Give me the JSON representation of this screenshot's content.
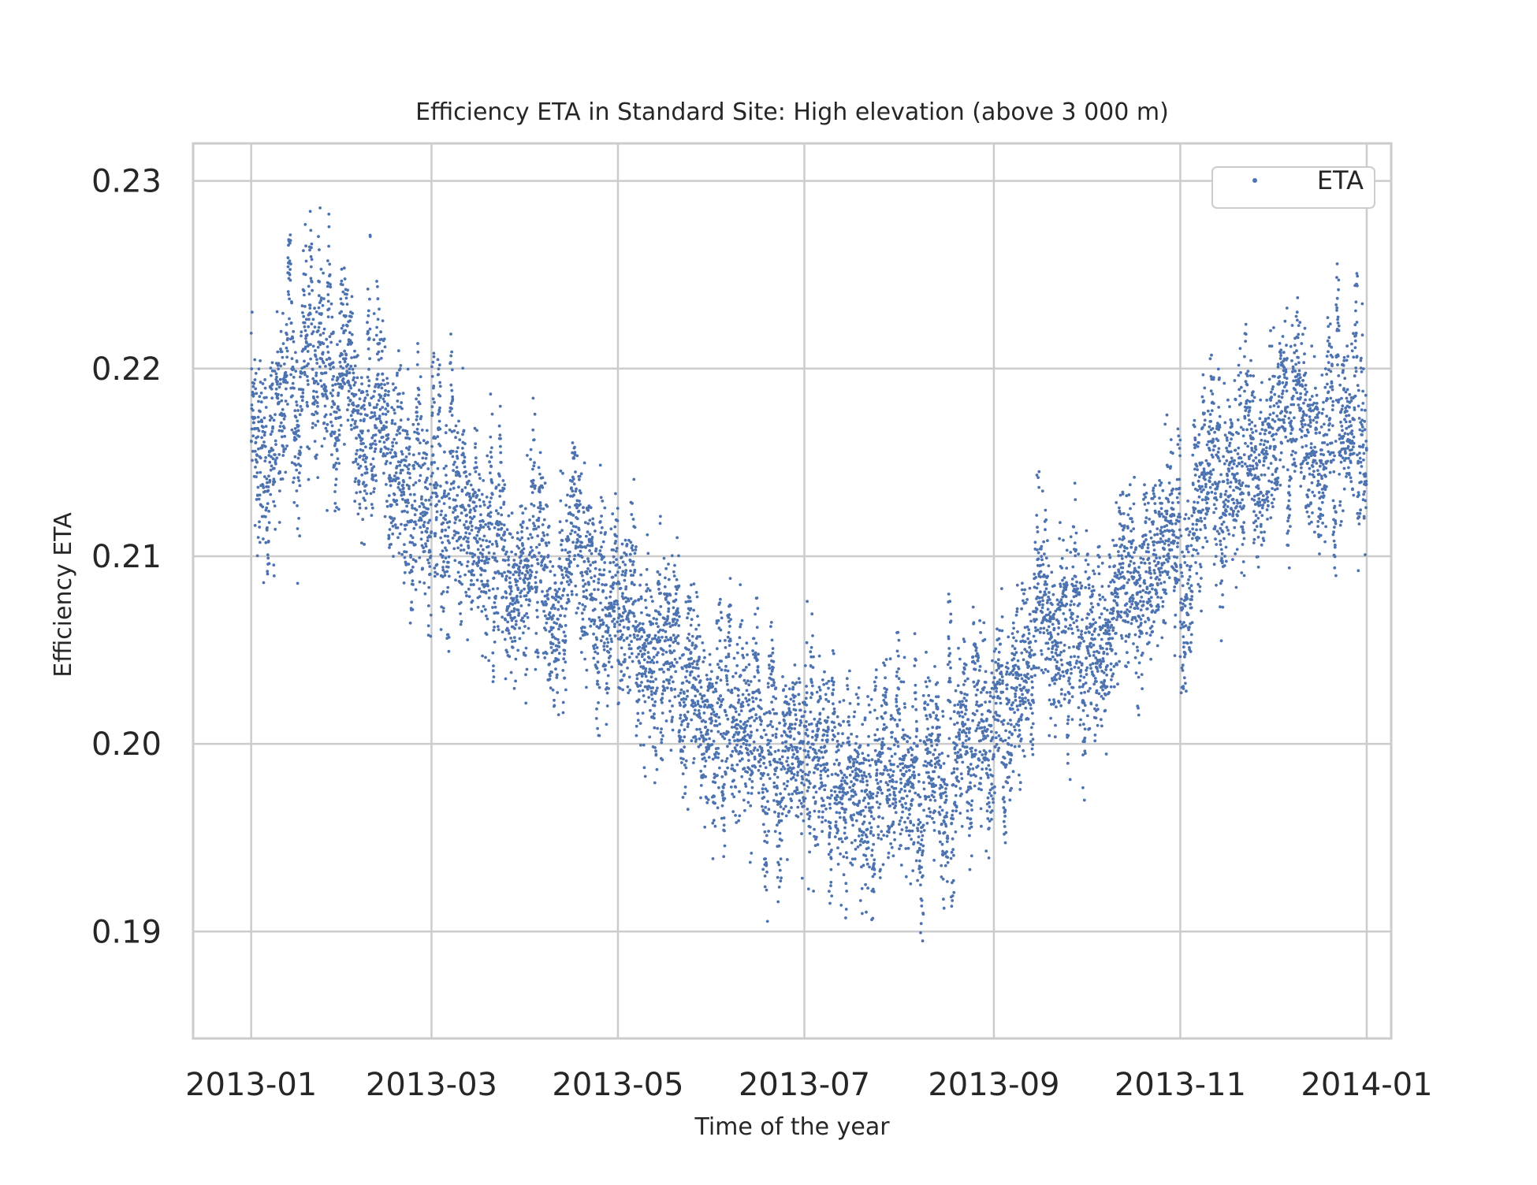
{
  "chart_data": {
    "type": "scatter",
    "title": "Efficiency ETA in Standard Site: High elevation (above 3 000 m)",
    "xlabel": "Time of the year",
    "ylabel": "Efficiency ETA",
    "x_range": [
      "2012-12-13",
      "2014-01-09"
    ],
    "ylim": [
      0.1843,
      0.232
    ],
    "x_ticks": [
      "2013-01",
      "2013-03",
      "2013-05",
      "2013-07",
      "2013-09",
      "2013-11",
      "2014-01"
    ],
    "y_ticks": [
      "0.19",
      "0.20",
      "0.21",
      "0.22",
      "0.23"
    ],
    "grid": true,
    "legend": {
      "position": "top-right",
      "entries": [
        "ETA"
      ]
    },
    "marker": "dot",
    "series_color": "#4c72b0",
    "series": [
      {
        "name": "ETA",
        "note_density": "hourly points, approx. one per hour over 2013",
        "trend": [
          {
            "x": "2013-01-01",
            "y": 0.2165
          },
          {
            "x": "2013-01-10",
            "y": 0.219
          },
          {
            "x": "2013-01-20",
            "y": 0.2205
          },
          {
            "x": "2013-02-01",
            "y": 0.2195
          },
          {
            "x": "2013-02-10",
            "y": 0.218
          },
          {
            "x": "2013-02-20",
            "y": 0.215
          },
          {
            "x": "2013-03-01",
            "y": 0.2125
          },
          {
            "x": "2013-03-15",
            "y": 0.211
          },
          {
            "x": "2013-04-01",
            "y": 0.2095
          },
          {
            "x": "2013-04-15",
            "y": 0.2085
          },
          {
            "x": "2013-05-01",
            "y": 0.206
          },
          {
            "x": "2013-05-15",
            "y": 0.205
          },
          {
            "x": "2013-06-01",
            "y": 0.203
          },
          {
            "x": "2013-06-15",
            "y": 0.2
          },
          {
            "x": "2013-07-01",
            "y": 0.199
          },
          {
            "x": "2013-07-15",
            "y": 0.1975
          },
          {
            "x": "2013-08-01",
            "y": 0.1985
          },
          {
            "x": "2013-08-15",
            "y": 0.199
          },
          {
            "x": "2013-09-01",
            "y": 0.201
          },
          {
            "x": "2013-09-15",
            "y": 0.2045
          },
          {
            "x": "2013-10-01",
            "y": 0.206
          },
          {
            "x": "2013-10-15",
            "y": 0.2085
          },
          {
            "x": "2013-11-01",
            "y": 0.2115
          },
          {
            "x": "2013-11-15",
            "y": 0.214
          },
          {
            "x": "2013-12-01",
            "y": 0.2155
          },
          {
            "x": "2013-12-15",
            "y": 0.217
          },
          {
            "x": "2013-12-31",
            "y": 0.2165
          }
        ],
        "spread": [
          {
            "x": "2013-01-01",
            "low": 0.2055,
            "high": 0.2245
          },
          {
            "x": "2013-01-20",
            "low": 0.2075,
            "high": 0.2285
          },
          {
            "x": "2013-02-10",
            "low": 0.2065,
            "high": 0.2298
          },
          {
            "x": "2013-03-01",
            "low": 0.2055,
            "high": 0.2225
          },
          {
            "x": "2013-04-01",
            "low": 0.202,
            "high": 0.22
          },
          {
            "x": "2013-05-01",
            "low": 0.199,
            "high": 0.217
          },
          {
            "x": "2013-06-01",
            "low": 0.192,
            "high": 0.2135
          },
          {
            "x": "2013-06-15",
            "low": 0.188,
            "high": 0.2175
          },
          {
            "x": "2013-07-01",
            "low": 0.188,
            "high": 0.2105
          },
          {
            "x": "2013-07-15",
            "low": 0.1862,
            "high": 0.209
          },
          {
            "x": "2013-08-01",
            "low": 0.188,
            "high": 0.2115
          },
          {
            "x": "2013-09-01",
            "low": 0.194,
            "high": 0.2175
          },
          {
            "x": "2013-10-01",
            "low": 0.196,
            "high": 0.2165
          },
          {
            "x": "2013-11-01",
            "low": 0.201,
            "high": 0.222
          },
          {
            "x": "2013-12-01",
            "low": 0.205,
            "high": 0.225
          },
          {
            "x": "2013-12-15",
            "low": 0.206,
            "high": 0.2262
          },
          {
            "x": "2013-12-31",
            "low": 0.2095,
            "high": 0.225
          }
        ]
      }
    ]
  }
}
